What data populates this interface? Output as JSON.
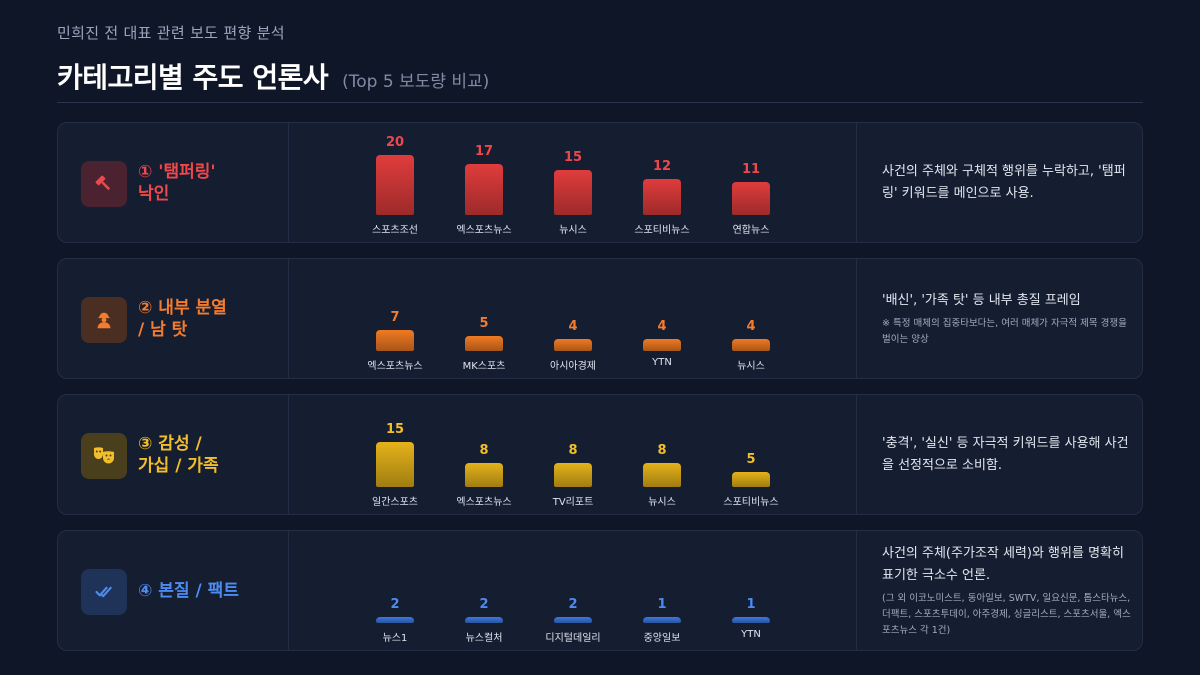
{
  "header": {
    "subtitle": "민희진 전 대표 관련 보도 편향 분석",
    "title": "카테고리별 주도 언론사",
    "title_note": "(Top 5 보도량 비교)"
  },
  "chart_data": [
    {
      "type": "bar",
      "title": "① '탬퍼링' 낙인",
      "categories": [
        "스포츠조선",
        "엑스포츠뉴스",
        "뉴시스",
        "스포티비뉴스",
        "연합뉴스"
      ],
      "values": [
        20,
        17,
        15,
        12,
        11
      ],
      "color": "#e03c3c"
    },
    {
      "type": "bar",
      "title": "② 내부 분열 / 남 탓",
      "categories": [
        "엑스포츠뉴스",
        "MK스포츠",
        "아시아경제",
        "YTN",
        "뉴시스"
      ],
      "values": [
        7,
        5,
        4,
        4,
        4
      ],
      "color": "#f07a22"
    },
    {
      "type": "bar",
      "title": "③ 감성 / 가십 / 가족",
      "categories": [
        "일간스포츠",
        "엑스포츠뉴스",
        "TV리포트",
        "뉴시스",
        "스포티비뉴스"
      ],
      "values": [
        15,
        8,
        8,
        8,
        5
      ],
      "color": "#e5b21a"
    },
    {
      "type": "bar",
      "title": "④ 본질 / 팩트",
      "categories": [
        "뉴스1",
        "뉴스컬처",
        "디지털데일리",
        "중앙일보",
        "YTN"
      ],
      "values": [
        2,
        2,
        2,
        1,
        1
      ],
      "color": "#3a78e0"
    }
  ],
  "panels": [
    {
      "label": "① '탬퍼링'\n낙인",
      "icon": "gavel-icon",
      "accent": "#f0474a",
      "icon_bg": "#4a2230",
      "desc": "사건의 주체와 구체적 행위를 누락하고, '탬퍼링' 키워드를 메인으로 사용.",
      "note": ""
    },
    {
      "label": "② 내부 분열\n/ 남 탓",
      "icon": "person-icon",
      "accent": "#f47c2c",
      "icon_bg": "#4a2e22",
      "desc": "'배신', '가족 탓' 등 내부 총질 프레임",
      "note": "※ 특정 매체의 집중타보다는, 여러 매체가 자극적 제목 경쟁을 벌이는 양상"
    },
    {
      "label": "③ 감성 /\n가십 / 가족",
      "icon": "theater-masks-icon",
      "accent": "#f2be2a",
      "icon_bg": "#4a3f1c",
      "desc": "'충격', '실신' 등 자극적 키워드를 사용해 사건을 선정적으로 소비함.",
      "note": ""
    },
    {
      "label": "④ 본질 / 팩트",
      "icon": "check-double-icon",
      "accent": "#4c8cf0",
      "icon_bg": "#1f3258",
      "desc": "사건의 주체(주가조작 세력)와 행위를 명확히 표기한 극소수 언론.",
      "note": "(그 외 이코노미스트, 동아일보, SWTV, 일요신문, 톱스타뉴스, 더팩트, 스포츠투데이, 아주경제, 싱글리스트, 스포츠서울, 엑스포츠뉴스 각 1건)"
    }
  ]
}
